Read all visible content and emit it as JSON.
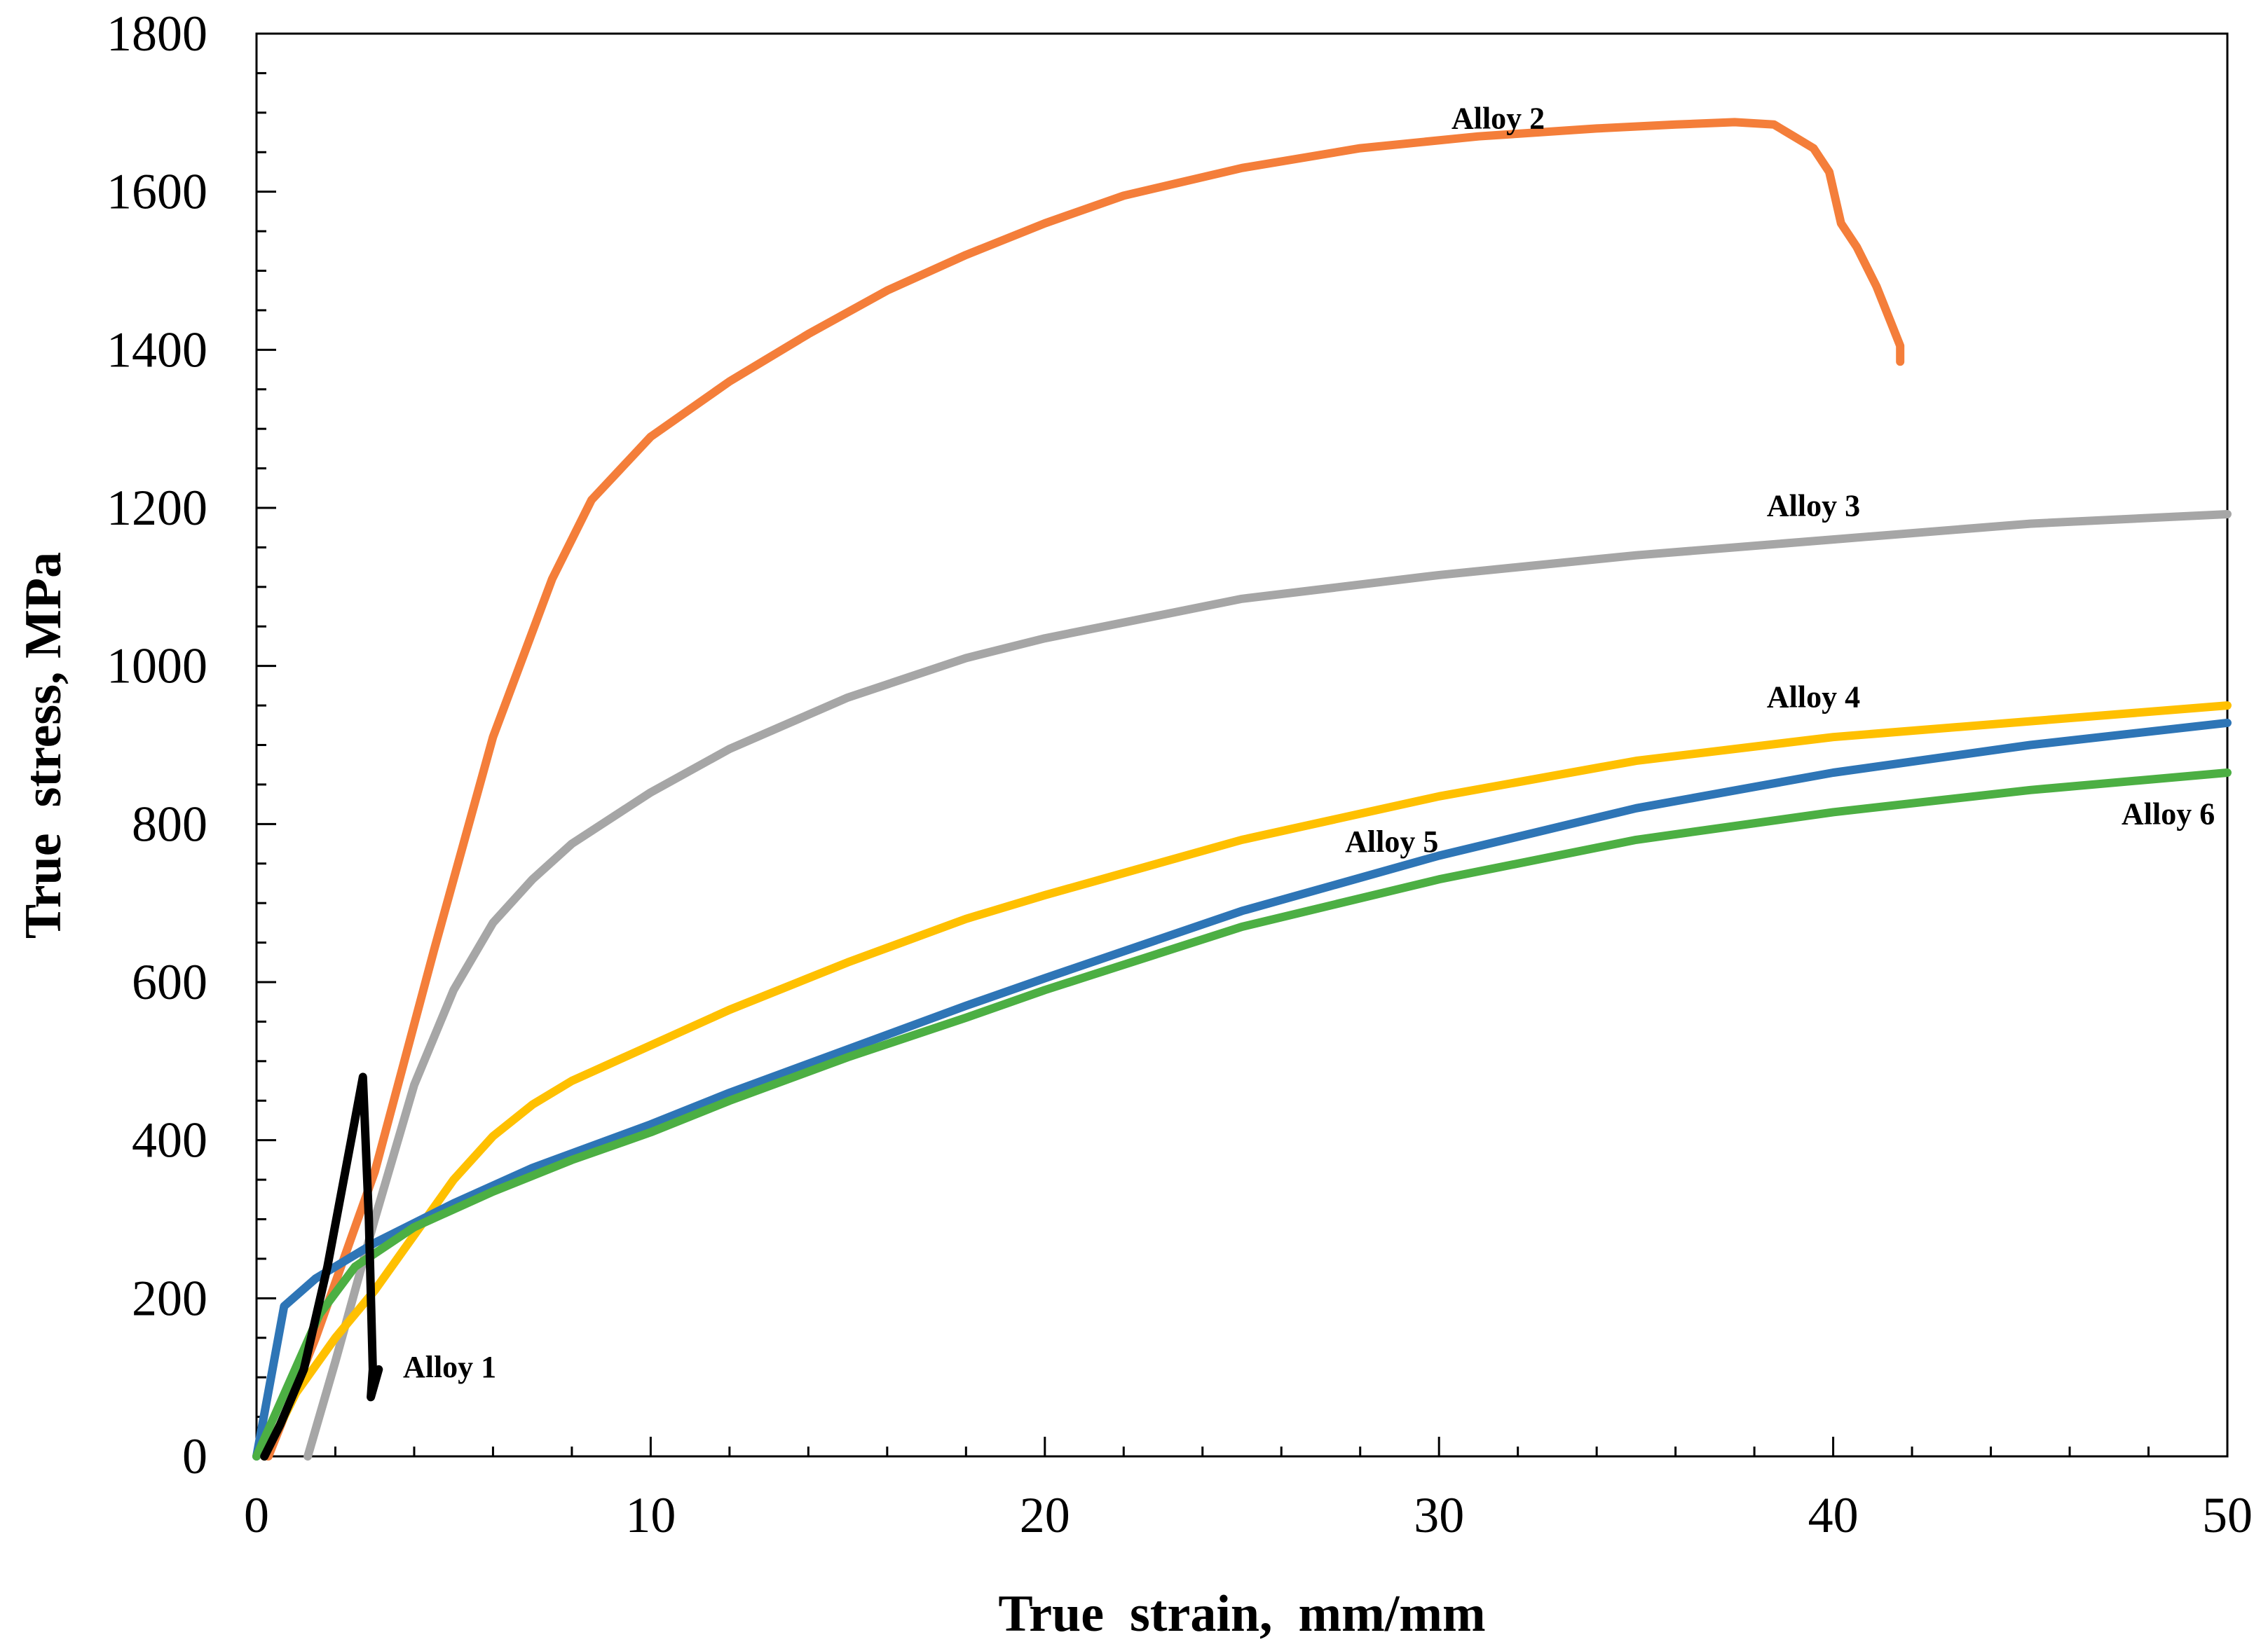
{
  "chart_data": {
    "type": "line",
    "xlabel": "True  strain,  mm/mm",
    "ylabel": "True  stress, MPa",
    "xlim": [
      0,
      50
    ],
    "ylim": [
      0,
      1800
    ],
    "xticks": [
      "0",
      "10",
      "20",
      "30",
      "40",
      "50"
    ],
    "yticks": [
      "0",
      "200",
      "400",
      "600",
      "800",
      "1000",
      "1200",
      "1400",
      "1600",
      "1800"
    ],
    "grid": false,
    "series": [
      {
        "name": "Alloy 2",
        "color": "#f47e3a",
        "label_at": [
          31.5,
          1680
        ],
        "points": [
          [
            0.3,
            0
          ],
          [
            1.5,
            150
          ],
          [
            3,
            360
          ],
          [
            4.5,
            640
          ],
          [
            6,
            910
          ],
          [
            7.5,
            1110
          ],
          [
            8.5,
            1210
          ],
          [
            10,
            1290
          ],
          [
            12,
            1360
          ],
          [
            14,
            1420
          ],
          [
            16,
            1475
          ],
          [
            18,
            1520
          ],
          [
            20,
            1560
          ],
          [
            22,
            1595
          ],
          [
            25,
            1630
          ],
          [
            28,
            1655
          ],
          [
            31,
            1670
          ],
          [
            34,
            1680
          ],
          [
            36,
            1685
          ],
          [
            37.5,
            1688
          ],
          [
            38.5,
            1685
          ],
          [
            39,
            1670
          ],
          [
            39.5,
            1655
          ],
          [
            39.9,
            1625
          ],
          [
            40.2,
            1560
          ],
          [
            40.6,
            1530
          ],
          [
            41.1,
            1480
          ],
          [
            41.5,
            1430
          ],
          [
            41.7,
            1405
          ],
          [
            41.7,
            1385
          ]
        ]
      },
      {
        "name": "Alloy 3",
        "color": "#a6a6a6",
        "label_at": [
          39.5,
          1190
        ],
        "points": [
          [
            1.3,
            0
          ],
          [
            2,
            120
          ],
          [
            3,
            300
          ],
          [
            4,
            470
          ],
          [
            5,
            590
          ],
          [
            6,
            675
          ],
          [
            7,
            730
          ],
          [
            8,
            775
          ],
          [
            10,
            840
          ],
          [
            12,
            895
          ],
          [
            15,
            960
          ],
          [
            18,
            1010
          ],
          [
            20,
            1035
          ],
          [
            25,
            1085
          ],
          [
            30,
            1115
          ],
          [
            35,
            1140
          ],
          [
            40,
            1160
          ],
          [
            45,
            1180
          ],
          [
            50,
            1192
          ]
        ]
      },
      {
        "name": "Alloy 4",
        "color": "#ffc000",
        "label_at": [
          39.5,
          948
        ],
        "points": [
          [
            0.2,
            0
          ],
          [
            1,
            80
          ],
          [
            2,
            150
          ],
          [
            3,
            210
          ],
          [
            4,
            280
          ],
          [
            5,
            350
          ],
          [
            6,
            405
          ],
          [
            7,
            445
          ],
          [
            8,
            475
          ],
          [
            10,
            520
          ],
          [
            12,
            565
          ],
          [
            15,
            625
          ],
          [
            18,
            680
          ],
          [
            20,
            710
          ],
          [
            25,
            780
          ],
          [
            30,
            835
          ],
          [
            35,
            880
          ],
          [
            40,
            910
          ],
          [
            45,
            930
          ],
          [
            50,
            950
          ]
        ]
      },
      {
        "name": "Alloy 5",
        "color": "#2e75b6",
        "label_at": [
          28.8,
          765
        ],
        "points": [
          [
            0,
            0
          ],
          [
            0.7,
            190
          ],
          [
            1.5,
            225
          ],
          [
            3,
            270
          ],
          [
            5,
            320
          ],
          [
            7,
            365
          ],
          [
            10,
            420
          ],
          [
            12,
            460
          ],
          [
            15,
            515
          ],
          [
            18,
            570
          ],
          [
            20,
            605
          ],
          [
            25,
            690
          ],
          [
            30,
            760
          ],
          [
            35,
            820
          ],
          [
            40,
            865
          ],
          [
            45,
            900
          ],
          [
            50,
            928
          ]
        ]
      },
      {
        "name": "Alloy 6",
        "color": "#4caf43",
        "label_at": [
          48.5,
          800
        ],
        "points": [
          [
            0,
            0
          ],
          [
            0.8,
            90
          ],
          [
            1.6,
            180
          ],
          [
            2.5,
            240
          ],
          [
            4,
            290
          ],
          [
            6,
            335
          ],
          [
            8,
            375
          ],
          [
            10,
            410
          ],
          [
            12,
            450
          ],
          [
            15,
            505
          ],
          [
            18,
            555
          ],
          [
            20,
            590
          ],
          [
            25,
            670
          ],
          [
            30,
            730
          ],
          [
            35,
            780
          ],
          [
            40,
            815
          ],
          [
            45,
            843
          ],
          [
            50,
            865
          ]
        ]
      },
      {
        "name": "Alloy 1",
        "color": "#000000",
        "label_at": [
          4.9,
          100
        ],
        "points": [
          [
            0.2,
            0
          ],
          [
            0.6,
            40
          ],
          [
            1.2,
            110
          ],
          [
            1.8,
            240
          ],
          [
            2.4,
            400
          ],
          [
            2.7,
            480
          ],
          [
            2.85,
            300
          ],
          [
            2.95,
            110
          ],
          [
            2.9,
            75
          ],
          [
            3.1,
            110
          ]
        ]
      }
    ]
  }
}
